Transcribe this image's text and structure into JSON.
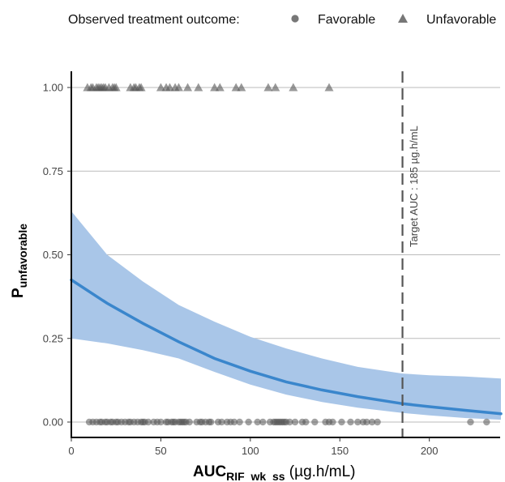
{
  "legend": {
    "title": "Observed treatment outcome:",
    "items": [
      {
        "label": "Favorable",
        "shape": "circle"
      },
      {
        "label": "Unfavorable",
        "shape": "triangle"
      }
    ]
  },
  "axes": {
    "y_label_main": "P",
    "y_label_sub": "unfavorable",
    "x_label_main": "AUC",
    "x_label_sub": "RIF  wk  ss",
    "x_label_unit": " (µg.h/mL)"
  },
  "annotation": {
    "text": "Target AUC : 185 µg.h/mL",
    "x": 185
  },
  "chart_data": {
    "type": "line",
    "xlim": [
      0,
      240
    ],
    "ylim": [
      0,
      1
    ],
    "x_ticks": [
      0,
      50,
      100,
      150,
      200
    ],
    "y_ticks": [
      0.0,
      0.25,
      0.5,
      0.75,
      1.0
    ],
    "y_tick_labels": [
      "0.00",
      "0.25",
      "0.50",
      "0.75",
      "1.00"
    ],
    "grid": "horizontal",
    "legend_position": "top",
    "colors": {
      "line": "#3a86cc",
      "band": "#a9c6e8",
      "points": "#555555",
      "grid": "#bbbbbb",
      "vline": "#555555"
    },
    "series": [
      {
        "type": "line",
        "x": [
          0,
          20,
          40,
          60,
          80,
          100,
          120,
          140,
          160,
          185,
          200,
          220,
          240
        ],
        "y": [
          0.425,
          0.355,
          0.295,
          0.24,
          0.19,
          0.152,
          0.12,
          0.096,
          0.076,
          0.055,
          0.046,
          0.035,
          0.025
        ]
      },
      {
        "type": "band",
        "x": [
          0,
          20,
          40,
          60,
          80,
          100,
          120,
          140,
          160,
          185,
          200,
          220,
          240
        ],
        "lower": [
          0.25,
          0.235,
          0.215,
          0.19,
          0.15,
          0.112,
          0.082,
          0.06,
          0.043,
          0.027,
          0.02,
          0.012,
          0.007
        ],
        "upper": [
          0.63,
          0.5,
          0.42,
          0.35,
          0.3,
          0.255,
          0.22,
          0.19,
          0.165,
          0.145,
          0.14,
          0.136,
          0.13
        ]
      },
      {
        "type": "scatter",
        "name": "Unfavorable",
        "y": 1,
        "x": [
          9,
          11,
          12,
          14,
          15,
          16,
          17,
          18,
          19,
          21,
          23,
          24,
          25,
          33,
          35,
          36,
          38,
          39,
          50,
          53,
          55,
          58,
          60,
          65,
          71,
          80,
          83,
          92,
          95,
          110,
          114,
          124,
          144
        ]
      },
      {
        "type": "scatter",
        "name": "Favorable",
        "y": 0,
        "x": [
          10,
          12,
          14,
          16,
          17,
          19,
          20,
          22,
          23,
          25,
          26,
          28,
          30,
          32,
          33,
          35,
          37,
          39,
          40,
          41,
          43,
          46,
          48,
          50,
          53,
          54,
          56,
          57,
          58,
          60,
          61,
          62,
          63,
          64,
          66,
          70,
          72,
          73,
          75,
          77,
          78,
          82,
          84,
          87,
          89,
          91,
          94,
          99,
          104,
          107,
          111,
          113,
          114,
          115,
          116,
          117,
          118,
          119,
          120,
          122,
          125,
          129,
          131,
          136,
          142,
          144,
          146,
          151,
          156,
          160,
          163,
          165,
          168,
          171,
          223,
          232
        ]
      }
    ]
  }
}
